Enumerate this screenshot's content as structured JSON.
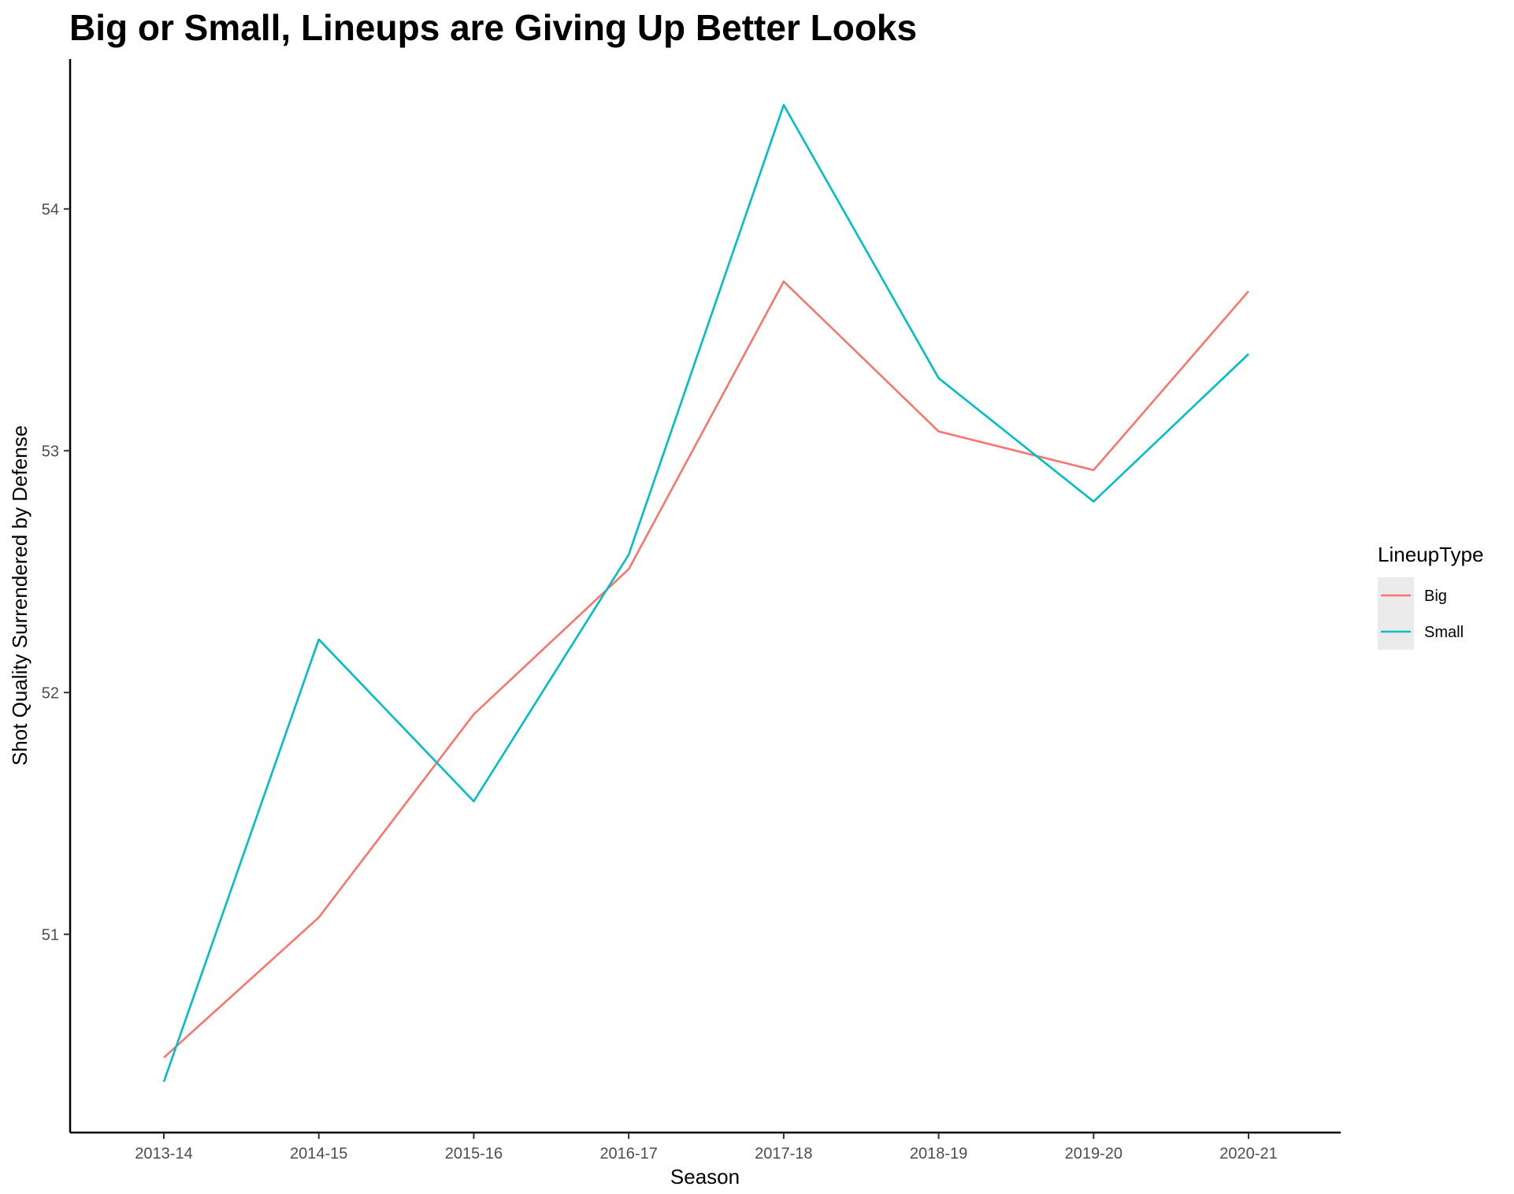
{
  "chart_data": {
    "type": "line",
    "title": "Big or Small, Lineups are Giving Up Better Looks",
    "xlabel": "Season",
    "ylabel": "Shot Quality Surrendered by Defense",
    "categories": [
      "2013-14",
      "2014-15",
      "2015-16",
      "2016-17",
      "2017-18",
      "2018-19",
      "2019-20",
      "2020-21"
    ],
    "ylim": [
      50.18,
      54.62
    ],
    "yticks": [
      51,
      52,
      53,
      54
    ],
    "grid": false,
    "legend": {
      "title": "LineupType",
      "position": "right"
    },
    "series": [
      {
        "name": "Big",
        "color": "#F8766D",
        "values": [
          50.49,
          51.07,
          51.91,
          52.51,
          53.7,
          53.08,
          52.92,
          53.66
        ]
      },
      {
        "name": "Small",
        "color": "#00BFC4",
        "values": [
          50.39,
          52.22,
          51.55,
          52.57,
          54.43,
          53.3,
          52.79,
          53.4
        ]
      }
    ]
  }
}
